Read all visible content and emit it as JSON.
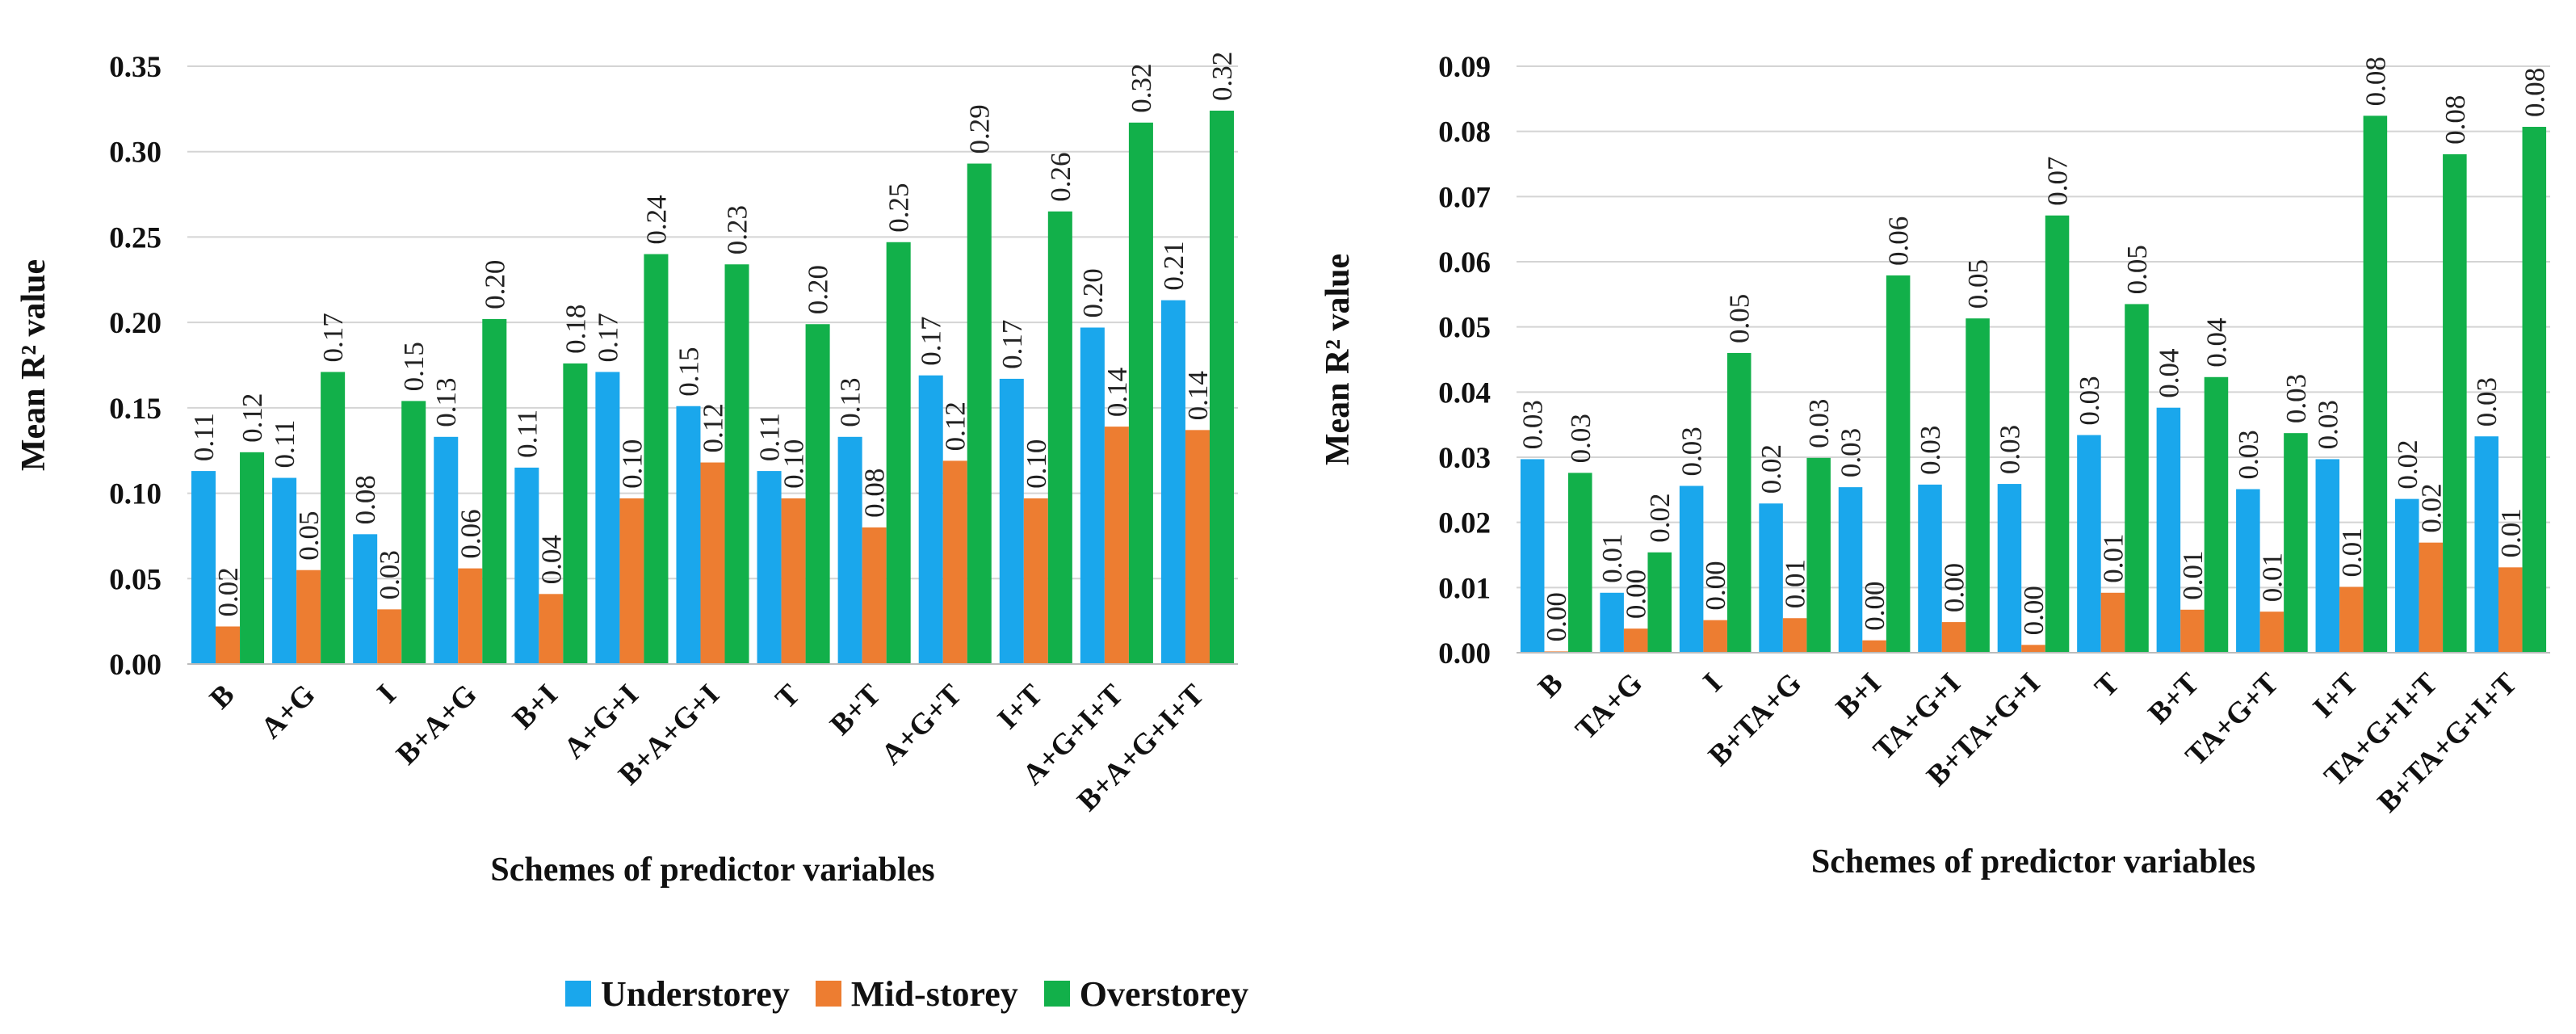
{
  "legend": {
    "items": [
      {
        "label": "Understorey",
        "color": "#1aa7ec"
      },
      {
        "label": "Mid-storey",
        "color": "#ed7d31"
      },
      {
        "label": "Overstorey",
        "color": "#12b04a"
      }
    ]
  },
  "chart_data": [
    {
      "type": "bar",
      "title": "",
      "xlabel": "Schemes of predictor variables",
      "ylabel": "Mean R² value",
      "ylim": [
        0,
        0.35
      ],
      "yticks": [
        "0.00",
        "0.05",
        "0.10",
        "0.15",
        "0.20",
        "0.25",
        "0.30",
        "0.35"
      ],
      "grid": true,
      "categories": [
        "B",
        "A+G",
        "I",
        "B+A+G",
        "B+I",
        "A+G+I",
        "B+A+G+I",
        "T",
        "B+T",
        "A+G+T",
        "I+T",
        "A+G+I+T",
        "B+A+G+I+T"
      ],
      "series": [
        {
          "name": "Understorey",
          "values": [
            0.113,
            0.109,
            0.076,
            0.133,
            0.115,
            0.171,
            0.151,
            0.113,
            0.133,
            0.169,
            0.167,
            0.197,
            0.213
          ],
          "labels": [
            "0.11",
            "0.11",
            "0.08",
            "0.13",
            "0.11",
            "0.17",
            "0.15",
            "0.11",
            "0.13",
            "0.17",
            "0.17",
            "0.20",
            "0.21"
          ]
        },
        {
          "name": "Mid-storey",
          "values": [
            0.022,
            0.055,
            0.032,
            0.056,
            0.041,
            0.097,
            0.118,
            0.097,
            0.08,
            0.119,
            0.097,
            0.139,
            0.137
          ],
          "labels": [
            "0.02",
            "0.05",
            "0.03",
            "0.06",
            "0.04",
            "0.10",
            "0.12",
            "0.10",
            "0.08",
            "0.12",
            "0.10",
            "0.14",
            "0.14"
          ]
        },
        {
          "name": "Overstorey",
          "values": [
            0.124,
            0.171,
            0.154,
            0.202,
            0.176,
            0.24,
            0.234,
            0.199,
            0.247,
            0.293,
            0.265,
            0.317,
            0.324
          ],
          "labels": [
            "0.12",
            "0.17",
            "0.15",
            "0.20",
            "0.18",
            "0.24",
            "0.23",
            "0.20",
            "0.25",
            "0.29",
            "0.26",
            "0.32",
            "0.32"
          ]
        }
      ]
    },
    {
      "type": "bar",
      "title": "",
      "xlabel": "Schemes of predictor variables",
      "ylabel": "Mean R² value",
      "ylim": [
        0,
        0.09
      ],
      "yticks": [
        "0.00",
        "0.01",
        "0.02",
        "0.03",
        "0.04",
        "0.05",
        "0.06",
        "0.07",
        "0.08",
        "0.09"
      ],
      "grid": true,
      "categories": [
        "B",
        "TA+G",
        "I",
        "B+TA+G",
        "B+I",
        "TA+G+I",
        "B+TA+G+I",
        "T",
        "B+T",
        "TA+G+T",
        "I+T",
        "TA+G+I+T",
        "B+TA+G+I+T"
      ],
      "series": [
        {
          "name": "Understorey",
          "values": [
            0.0297,
            0.0092,
            0.0256,
            0.0229,
            0.0254,
            0.0258,
            0.0259,
            0.0334,
            0.0376,
            0.0251,
            0.0297,
            0.0236,
            0.0332
          ],
          "labels": [
            "0.03",
            "0.01",
            "0.03",
            "0.02",
            "0.03",
            "0.03",
            "0.03",
            "0.03",
            "0.04",
            "0.03",
            "0.03",
            "0.02",
            "0.03"
          ]
        },
        {
          "name": "Mid-storey",
          "values": [
            0.0002,
            0.0037,
            0.005,
            0.0053,
            0.0019,
            0.0047,
            0.0012,
            0.0092,
            0.0066,
            0.0063,
            0.0101,
            0.0169,
            0.0131
          ],
          "labels": [
            "0.00",
            "0.00",
            "0.00",
            "0.01",
            "0.00",
            "0.00",
            "0.00",
            "0.01",
            "0.01",
            "0.01",
            "0.01",
            "0.02",
            "0.01"
          ]
        },
        {
          "name": "Overstorey",
          "values": [
            0.0276,
            0.0154,
            0.046,
            0.0299,
            0.0579,
            0.0513,
            0.0671,
            0.0535,
            0.0423,
            0.0337,
            0.0824,
            0.0765,
            0.0807
          ],
          "labels": [
            "0.03",
            "0.02",
            "0.05",
            "0.03",
            "0.06",
            "0.05",
            "0.07",
            "0.05",
            "0.04",
            "0.03",
            "0.08",
            "0.08",
            "0.08"
          ]
        }
      ]
    }
  ]
}
